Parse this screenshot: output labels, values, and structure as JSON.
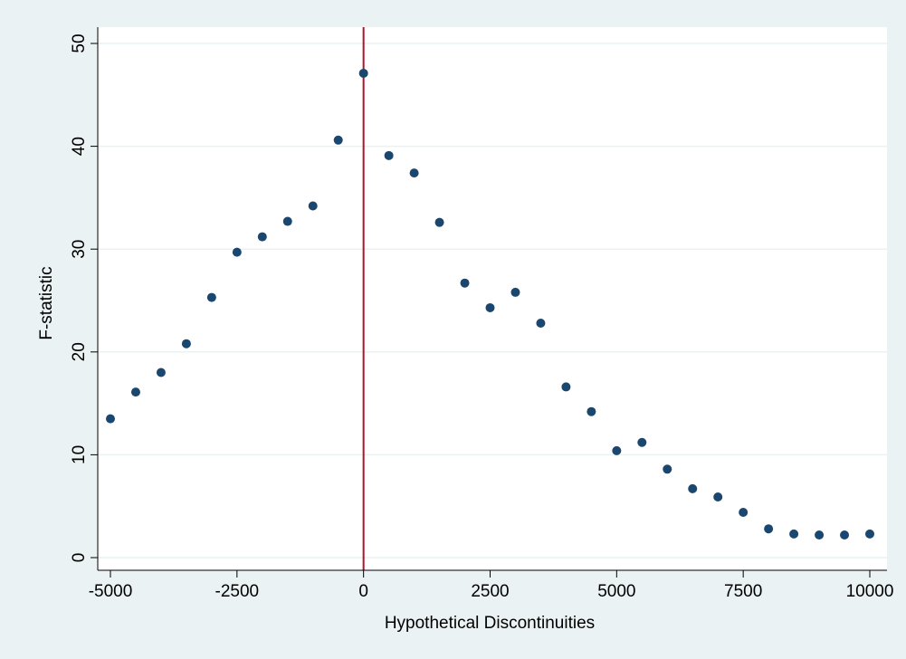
{
  "chart_data": {
    "type": "scatter",
    "title": "",
    "xlabel": "Hypothetical Discontinuities",
    "ylabel": "F-statistic",
    "xlim": [
      -5000,
      10000
    ],
    "ylim": [
      0,
      50
    ],
    "xticks": [
      -5000,
      -2500,
      0,
      2500,
      5000,
      7500,
      10000
    ],
    "yticks": [
      0,
      10,
      20,
      30,
      40,
      50
    ],
    "grid": "horizontal",
    "reference_line": {
      "x": 0,
      "color": "#b0132c"
    },
    "marker_color": "#1a476f",
    "series": [
      {
        "x": [
          -5000,
          -4500,
          -4000,
          -3500,
          -3000,
          -2500,
          -2000,
          -1500,
          -1000,
          -500,
          0,
          500,
          1000,
          1500,
          2000,
          2500,
          3000,
          3500,
          4000,
          4500,
          5000,
          5500,
          6000,
          6500,
          7000,
          7500,
          8000,
          8500,
          9000,
          9500,
          10000
        ],
        "y": [
          13.5,
          16.1,
          18.0,
          20.8,
          25.3,
          29.7,
          31.2,
          32.7,
          34.2,
          40.6,
          47.1,
          39.1,
          37.4,
          32.6,
          26.7,
          24.3,
          25.8,
          22.8,
          16.6,
          14.2,
          10.4,
          11.2,
          8.6,
          6.7,
          5.9,
          4.4,
          2.8,
          2.3,
          2.2,
          2.2,
          2.3
        ]
      }
    ]
  }
}
